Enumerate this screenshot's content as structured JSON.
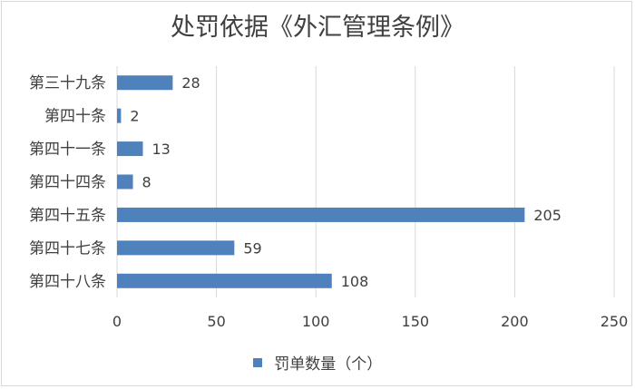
{
  "chart_data": {
    "type": "bar",
    "orientation": "horizontal",
    "title": "处罚依据《外汇管理条例》",
    "categories": [
      "第三十九条",
      "第四十条",
      "第四十一条",
      "第四十四条",
      "第四十五条",
      "第四十七条",
      "第四十八条"
    ],
    "series": [
      {
        "name": "罚单数量（个）",
        "values": [
          28,
          2,
          13,
          8,
          205,
          59,
          108
        ],
        "color": "#4f81bd"
      }
    ],
    "xlim": [
      0,
      250
    ],
    "xticks": [
      0,
      50,
      100,
      150,
      200,
      250
    ],
    "grid": true,
    "legend_position": "bottom"
  }
}
